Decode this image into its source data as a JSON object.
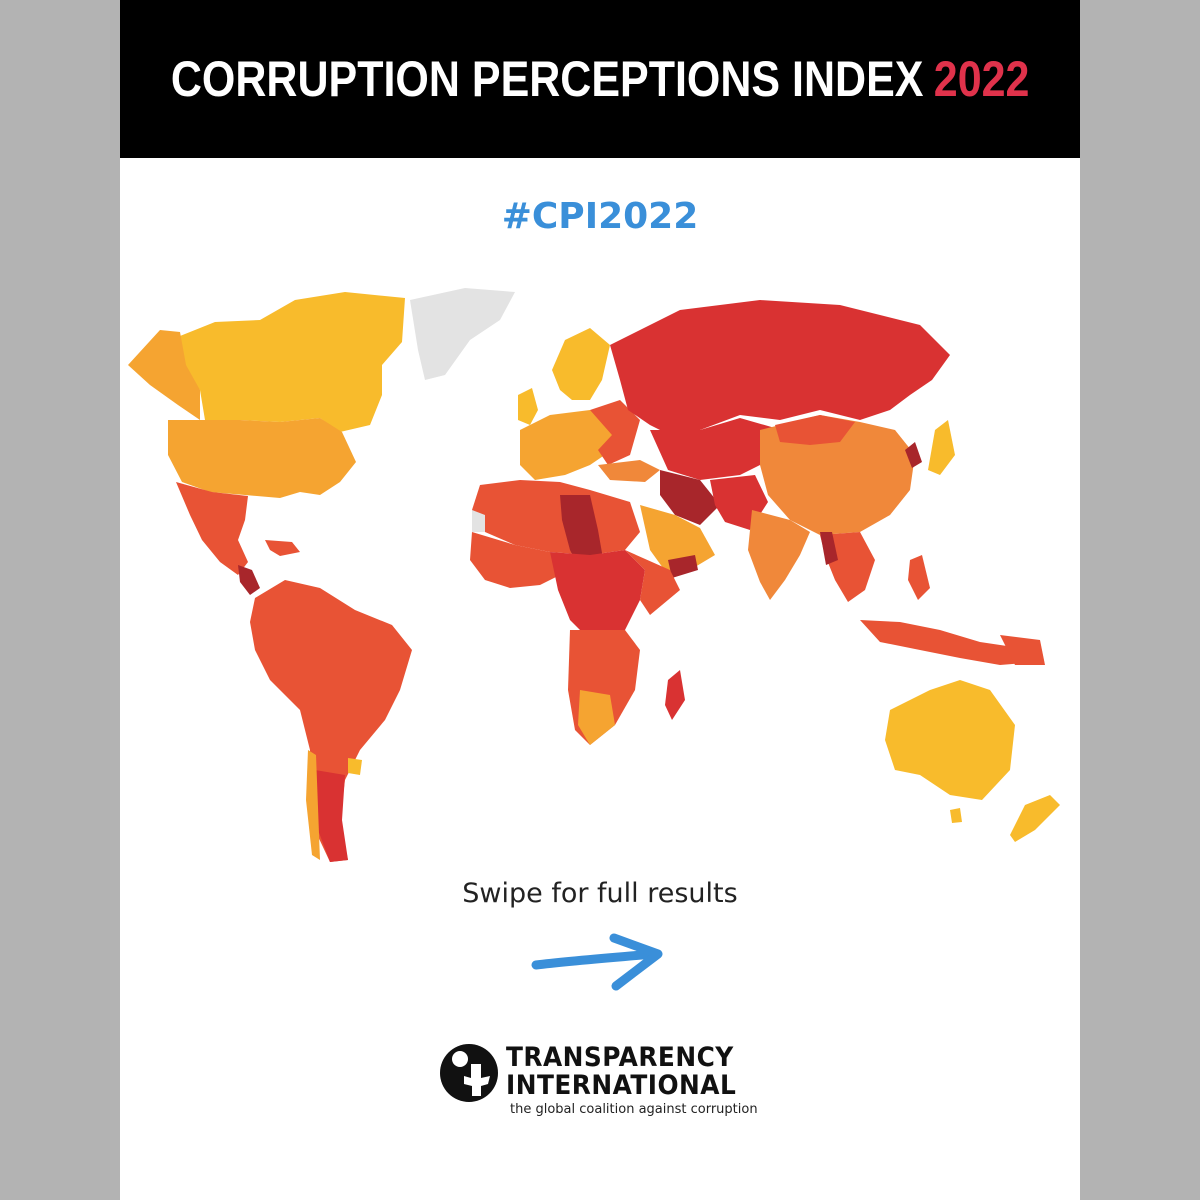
{
  "header": {
    "title": "CORRUPTION PERCEPTIONS INDEX",
    "year": "2022"
  },
  "hashtag": "#CPI2022",
  "cta": {
    "swipe_text": "Swipe for full results",
    "arrow_icon": "right-arrow-icon"
  },
  "logo": {
    "line1": "TRANSPARENCY",
    "line2": "INTERNATIONAL",
    "tagline": "the global coalition against corruption",
    "icon": "transparency-international-logo-icon"
  },
  "colors": {
    "header_bg": "#000000",
    "header_text": "#ffffff",
    "year_accent": "#e0324b",
    "hashtag": "#3a8fd9",
    "arrow": "#3a8fd9",
    "page_bg": "#ffffff",
    "side_bars": "#b3b3b3",
    "score_very_high_risk": "#a8262b",
    "score_high_risk": "#d93232",
    "score_elevated": "#e85335",
    "score_medium": "#f0883a",
    "score_lower": "#f5a431",
    "score_low": "#f8bb2c",
    "no_data": "#e3e3e3"
  }
}
